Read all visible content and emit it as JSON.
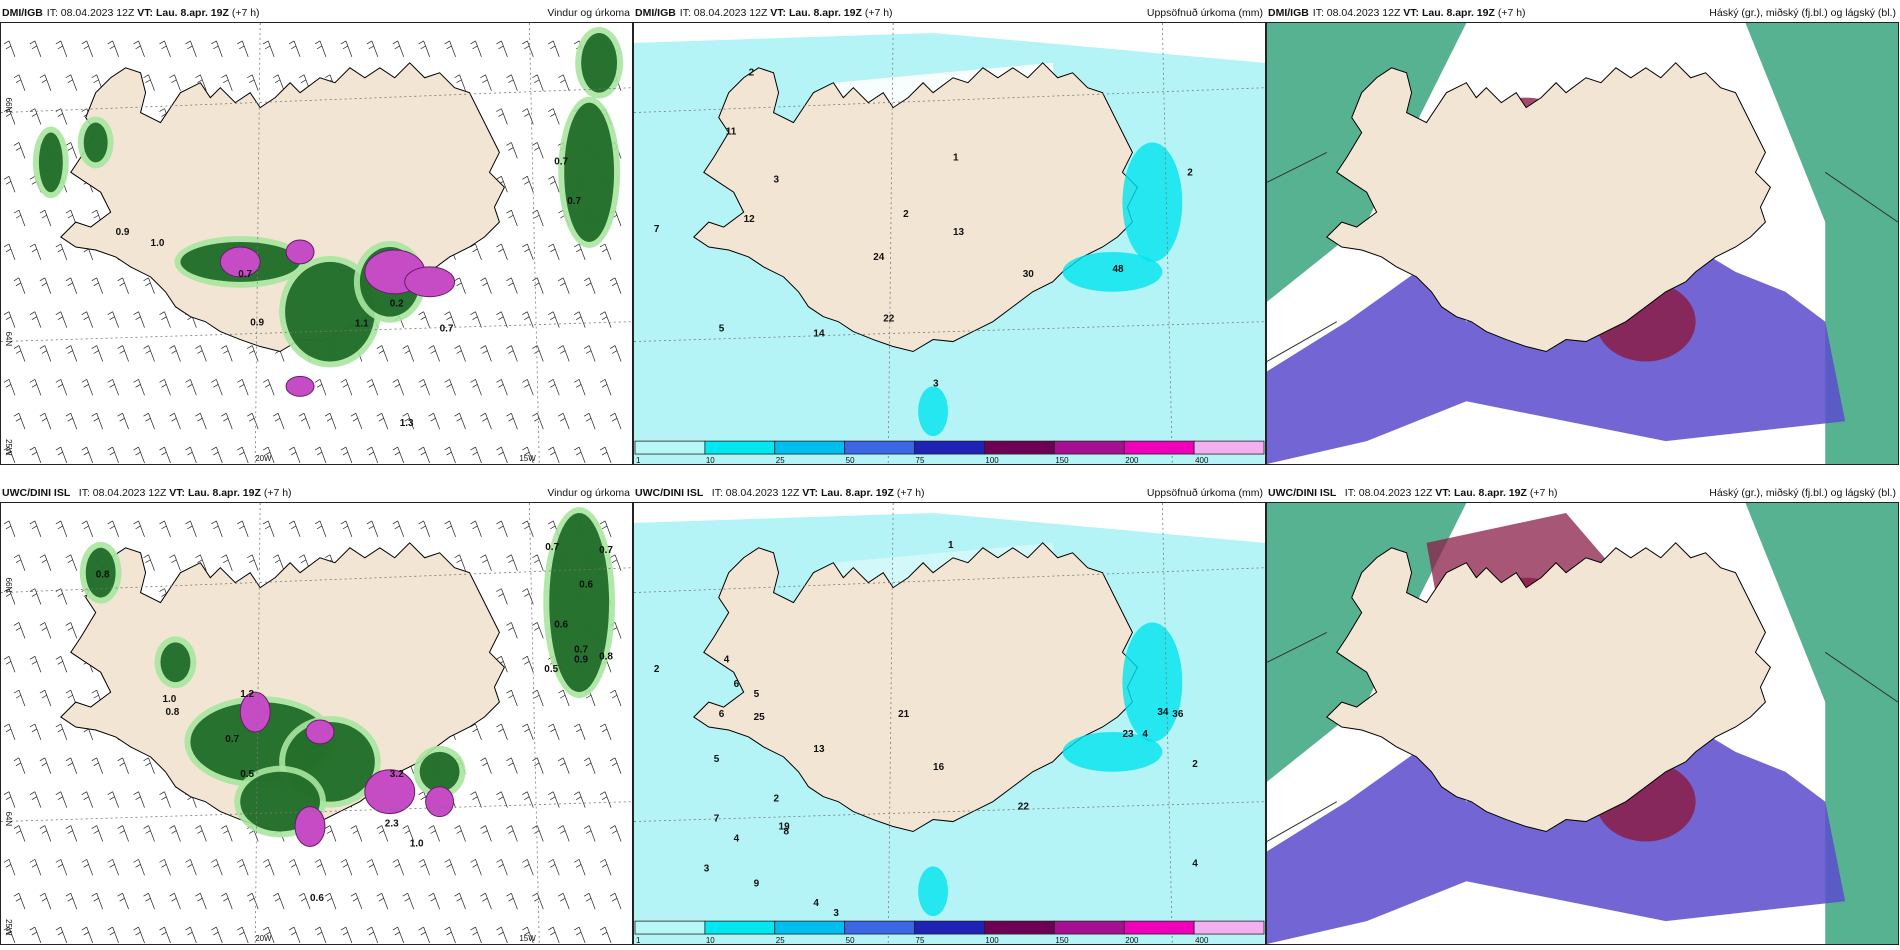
{
  "panels": [
    {
      "id": "p1",
      "model": "DMI/IGB",
      "meta": " IT: 08.04.2023 12Z ",
      "vt_label": "VT:",
      "vt": "Lau. 8.apr. 19Z",
      "lead": " (+7 h)",
      "title": "Vindur og úrkoma",
      "type": "wind"
    },
    {
      "id": "p2",
      "model": "DMI/IGB",
      "meta": " IT: 08.04.2023 12Z ",
      "vt_label": "VT:",
      "vt": "Lau. 8.apr. 19Z",
      "lead": " (+7 h)",
      "title": "Uppsöfnuð úrkoma (mm)",
      "type": "precip"
    },
    {
      "id": "p3",
      "model": "DMI/IGB",
      "meta": " IT: 08.04.2023 12Z ",
      "vt_label": "VT:",
      "vt": "Lau. 8.apr. 19Z",
      "lead": " (+7 h)",
      "title": "Háský (gr.), miðský (fj.bl.) og lágský (bl.)",
      "type": "cloud"
    },
    {
      "id": "p4",
      "model": "UWC/DINI ISL",
      "meta": " IT: 08.04.2023 12Z ",
      "vt_label": "VT:",
      "vt": "Lau. 8.apr. 19Z",
      "lead": " (+7 h)",
      "title": "Vindur og úrkoma",
      "type": "wind"
    },
    {
      "id": "p5",
      "model": "UWC/DINI ISL",
      "meta": " IT: 08.04.2023 12Z ",
      "vt_label": "VT:",
      "vt": "Lau. 8.apr. 19Z",
      "lead": " (+7 h)",
      "title": "Uppsöfnuð úrkoma (mm)",
      "type": "precip"
    },
    {
      "id": "p6",
      "model": "UWC/DINI ISL",
      "meta": " IT: 08.04.2023 12Z ",
      "vt_label": "VT:",
      "vt": "Lau. 8.apr. 19Z",
      "lead": " (+7 h)",
      "title": "Háský (gr.), miðský (fj.bl.) og lágský (bl.)",
      "type": "cloud"
    }
  ],
  "grid_labels": {
    "lat_66": "66N",
    "lat_64": "64N",
    "lon_20": "20W",
    "lon_15": "15W",
    "lon_25": "25W"
  },
  "legend": {
    "labels": [
      "1",
      "10",
      "25",
      "50",
      "75",
      "100",
      "150",
      "200",
      "400"
    ],
    "colors": [
      "#b7f7f7",
      "#00e8ef",
      "#00bfef",
      "#3b66e6",
      "#1f23b5",
      "#6e0055",
      "#a60f8f",
      "#f000b8",
      "#f3b0f0"
    ]
  },
  "colors": {
    "land": "#f3e5d3",
    "precip_light": "#b5f4f6",
    "precip_mid": "#00e3ef",
    "green_light": "#a8e6a0",
    "green_dark": "#0f5d19",
    "magenta": "#c64cc6",
    "cloud_high": "#3aa57e",
    "cloud_mid": "#5a4bcc",
    "cloud_low": "#8b1d47"
  },
  "values": {
    "p1": [
      "0.7",
      "0.7",
      "0.9",
      "1.0",
      "0.9",
      "0.7",
      "0.2",
      "1.1",
      "0.7",
      "1.3"
    ],
    "p2": [
      "2",
      "11",
      "3",
      "12",
      "7",
      "1",
      "2",
      "5",
      "14",
      "13",
      "24",
      "22",
      "30",
      "48",
      "3",
      "2"
    ],
    "p4": [
      "0.7",
      "0.7",
      "0.8",
      "0.6",
      "0.6",
      "0.7",
      "0.8",
      "0.9",
      "0.5",
      "1.0",
      "0.8",
      "1.2",
      "0.7",
      "0.5",
      "3.2",
      "2.3",
      "1.0",
      "0.6"
    ],
    "p5": [
      "1",
      "2",
      "4",
      "6",
      "5",
      "2",
      "8",
      "4",
      "3",
      "5",
      "6",
      "25",
      "13",
      "3",
      "4",
      "7",
      "9",
      "19",
      "21",
      "16",
      "23",
      "22",
      "34",
      "36",
      "2",
      "4",
      "4"
    ]
  }
}
